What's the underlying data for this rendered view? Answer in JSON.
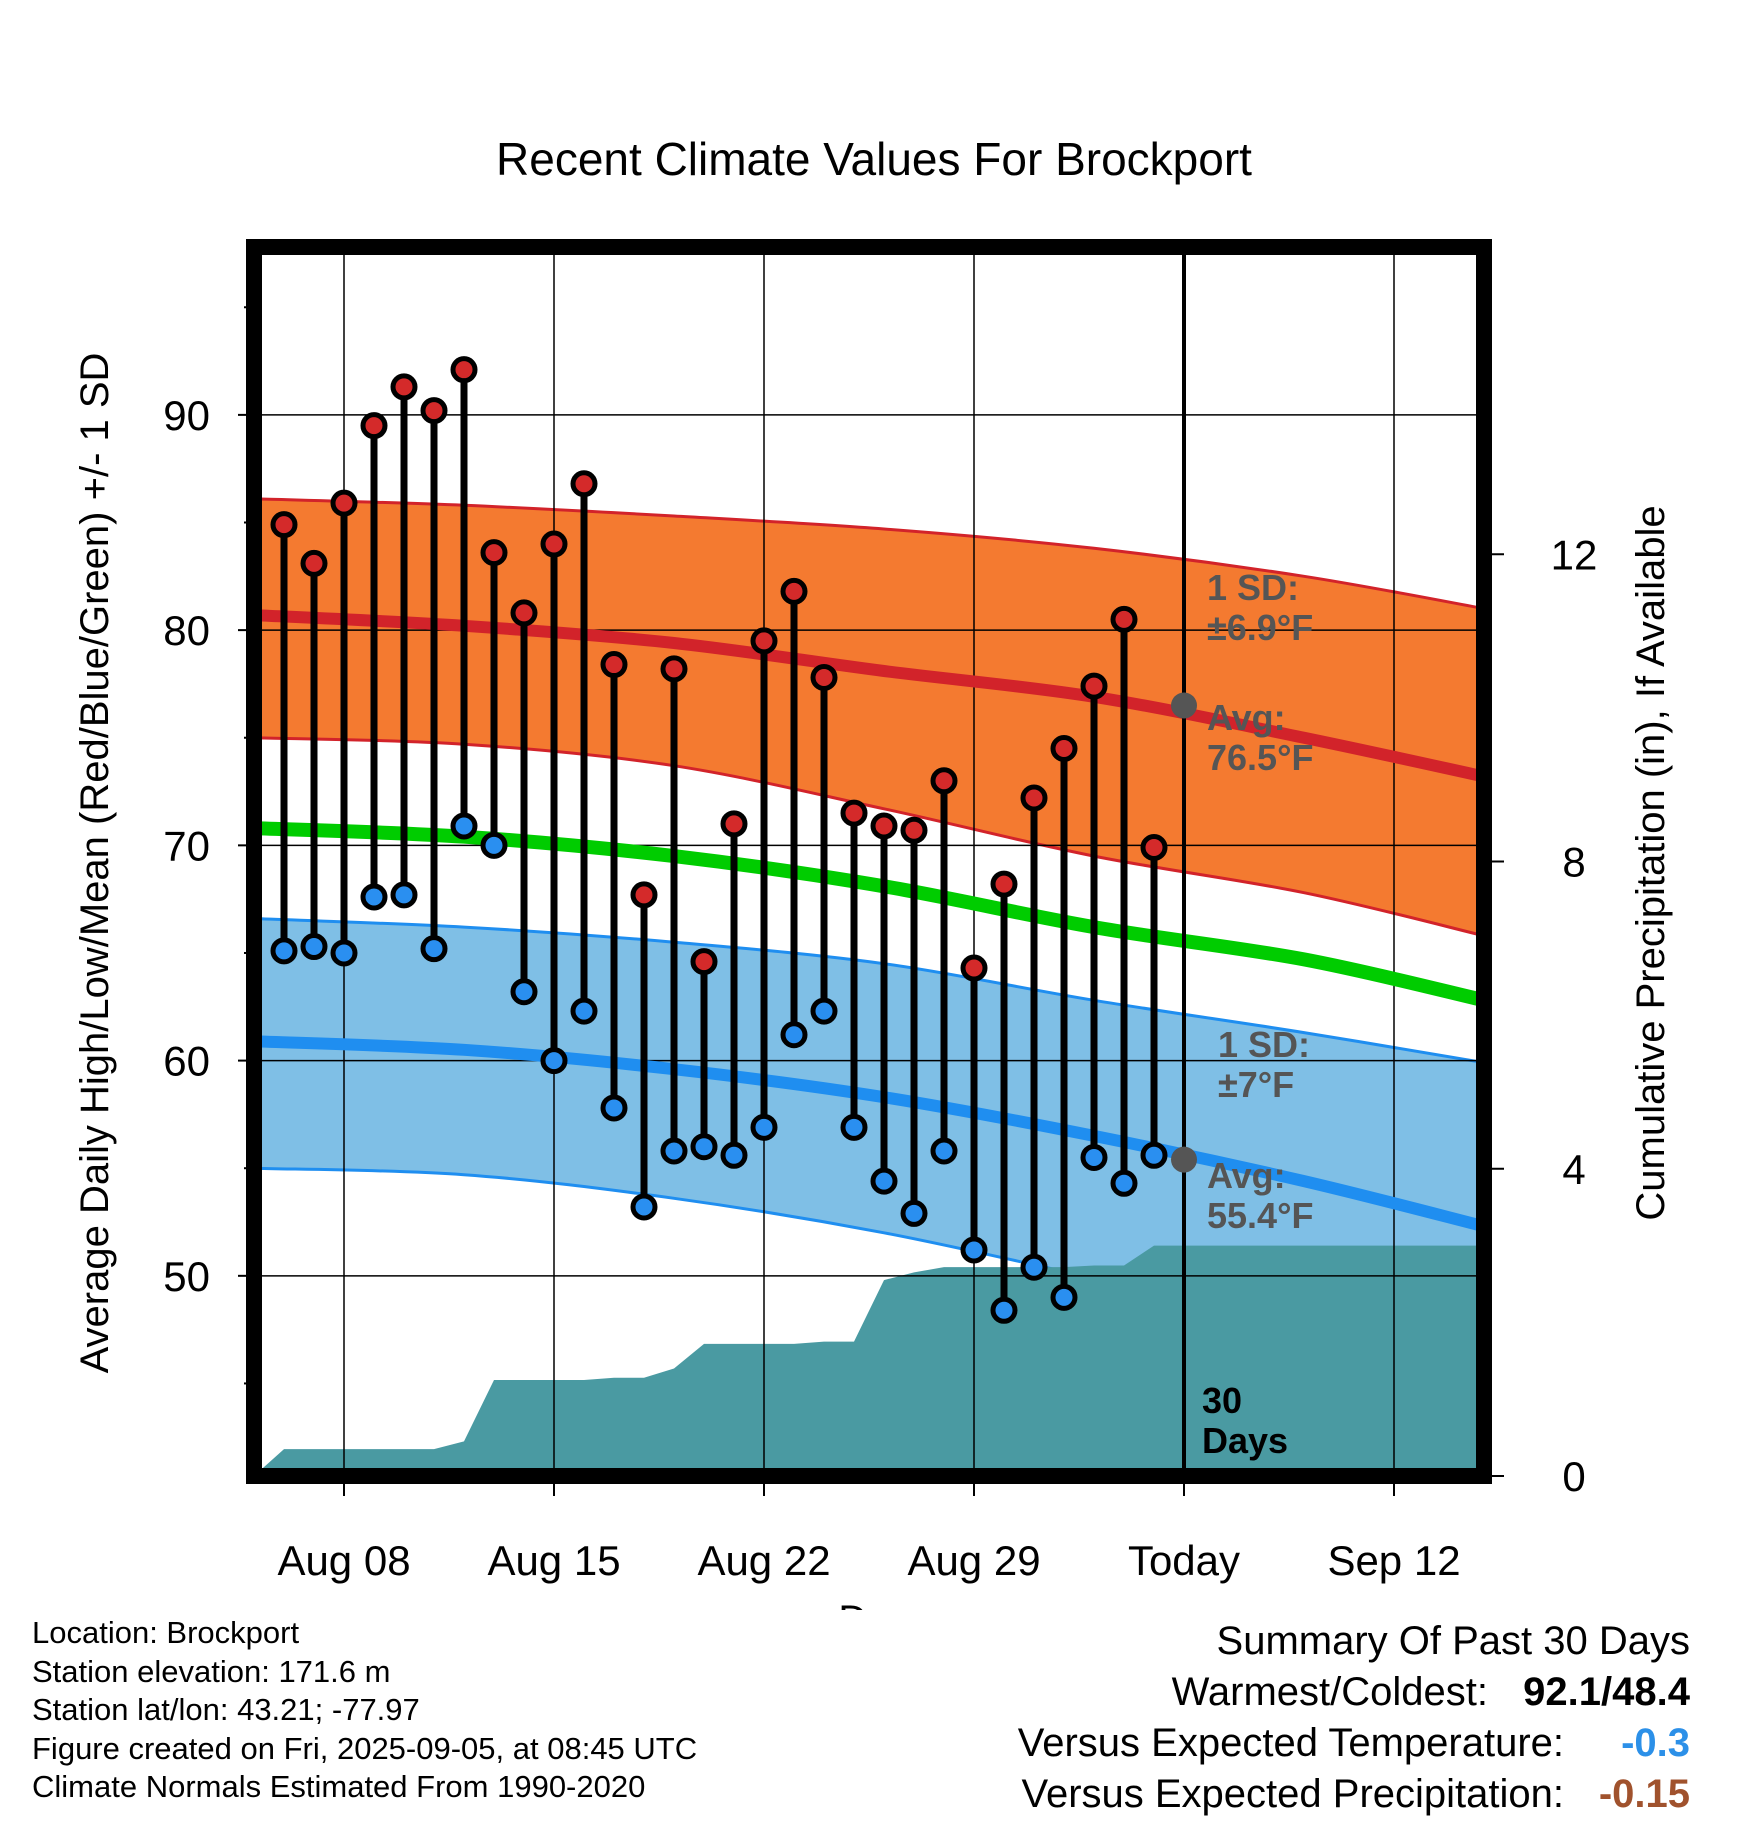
{
  "chart_data": {
    "type": "line",
    "title": "Recent Climate Values For Brockport",
    "xlabel": "Day",
    "ylabel": "Average Daily High/Low/Mean (Red/Blue/Green) +/- 1 SD",
    "ylabel_right": "Cumulative Precipitation (in), If Available",
    "x_axis": {
      "start_date": "2025-08-05",
      "end_date": "2025-09-15",
      "today_date": "2025-09-05"
    },
    "x_ticks": [
      {
        "date": "2025-08-08",
        "label": "Aug 08"
      },
      {
        "date": "2025-08-15",
        "label": "Aug 15"
      },
      {
        "date": "2025-08-22",
        "label": "Aug 22"
      },
      {
        "date": "2025-08-29",
        "label": "Aug 29"
      },
      {
        "date": "2025-09-05",
        "label": "Today"
      },
      {
        "date": "2025-09-12",
        "label": "Sep 12"
      }
    ],
    "ylim": [
      40.7,
      97.8
    ],
    "yticks": [
      50,
      60,
      70,
      80,
      90
    ],
    "y2lim": [
      0,
      16
    ],
    "y2ticks": [
      0,
      4,
      8,
      12
    ],
    "today_label": "30\nDays",
    "high_label": "1 SD:\n±6.9°F",
    "high_avg_label": "Avg:\n76.5°F",
    "low_label": "1 SD:\n±7°F",
    "low_avg_label": "Avg:\n55.4°F",
    "colors": {
      "high_band": "#f47a30",
      "high_line": "#d2232a",
      "low_band": "#7fbfe6",
      "low_line": "#1f8ef0",
      "mean_line": "#00cc00",
      "precip": "#4a9aa2",
      "high_dot": "#d42a2a",
      "low_dot": "#2a8ff0",
      "annotation": "#555555"
    },
    "normals": {
      "dates": [
        "2025-08-05",
        "2025-08-12",
        "2025-08-19",
        "2025-08-26",
        "2025-09-02",
        "2025-09-09",
        "2025-09-15"
      ],
      "high_avg": [
        80.7,
        80.2,
        79.4,
        78.1,
        76.9,
        75.0,
        73.2
      ],
      "high_upper": [
        86.1,
        85.8,
        85.3,
        84.7,
        83.8,
        82.5,
        81.0
      ],
      "high_lower": [
        75.0,
        74.7,
        73.7,
        71.7,
        69.5,
        67.8,
        65.8
      ],
      "mean_avg": [
        70.8,
        70.4,
        69.5,
        68.1,
        66.2,
        64.7,
        62.8
      ],
      "low_avg": [
        60.9,
        60.5,
        59.6,
        58.3,
        56.5,
        54.4,
        52.3
      ],
      "low_upper": [
        66.6,
        66.2,
        65.5,
        64.5,
        62.8,
        61.3,
        59.9
      ],
      "low_lower": [
        55.0,
        54.7,
        53.6,
        52.0,
        49.9,
        47.8,
        46.4
      ]
    },
    "series": [
      {
        "name": "High",
        "x": [
          "2025-08-06",
          "2025-08-07",
          "2025-08-08",
          "2025-08-09",
          "2025-08-10",
          "2025-08-11",
          "2025-08-12",
          "2025-08-13",
          "2025-08-14",
          "2025-08-15",
          "2025-08-16",
          "2025-08-17",
          "2025-08-18",
          "2025-08-19",
          "2025-08-20",
          "2025-08-21",
          "2025-08-22",
          "2025-08-23",
          "2025-08-24",
          "2025-08-25",
          "2025-08-26",
          "2025-08-27",
          "2025-08-28",
          "2025-08-29",
          "2025-08-30",
          "2025-08-31",
          "2025-09-01",
          "2025-09-02",
          "2025-09-03",
          "2025-09-04"
        ],
        "values": [
          84.9,
          83.1,
          85.9,
          89.5,
          91.3,
          90.2,
          92.1,
          83.6,
          80.8,
          84.0,
          86.8,
          78.4,
          67.7,
          78.2,
          64.6,
          71.0,
          79.5,
          81.8,
          77.8,
          71.5,
          70.9,
          70.7,
          73.0,
          64.3,
          68.2,
          72.2,
          74.5,
          77.4,
          80.5,
          69.9
        ]
      },
      {
        "name": "Low",
        "x": [
          "2025-08-06",
          "2025-08-07",
          "2025-08-08",
          "2025-08-09",
          "2025-08-10",
          "2025-08-11",
          "2025-08-12",
          "2025-08-13",
          "2025-08-14",
          "2025-08-15",
          "2025-08-16",
          "2025-08-17",
          "2025-08-18",
          "2025-08-19",
          "2025-08-20",
          "2025-08-21",
          "2025-08-22",
          "2025-08-23",
          "2025-08-24",
          "2025-08-25",
          "2025-08-26",
          "2025-08-27",
          "2025-08-28",
          "2025-08-29",
          "2025-08-30",
          "2025-08-31",
          "2025-09-01",
          "2025-09-02",
          "2025-09-03",
          "2025-09-04"
        ],
        "values": [
          65.1,
          65.3,
          65.0,
          67.6,
          67.7,
          65.2,
          70.9,
          70.0,
          63.2,
          60.0,
          62.3,
          57.8,
          53.2,
          55.8,
          56.0,
          55.6,
          56.9,
          61.2,
          62.3,
          56.9,
          54.4,
          52.9,
          55.8,
          51.2,
          48.4,
          50.4,
          49.0,
          55.5,
          54.3,
          55.6
        ]
      },
      {
        "name": "Cumulative Precipitation",
        "x": [
          "2025-08-05",
          "2025-08-06",
          "2025-08-07",
          "2025-08-08",
          "2025-08-09",
          "2025-08-10",
          "2025-08-11",
          "2025-08-12",
          "2025-08-13",
          "2025-08-14",
          "2025-08-15",
          "2025-08-16",
          "2025-08-17",
          "2025-08-18",
          "2025-08-19",
          "2025-08-20",
          "2025-08-21",
          "2025-08-22",
          "2025-08-23",
          "2025-08-24",
          "2025-08-25",
          "2025-08-26",
          "2025-08-27",
          "2025-08-28",
          "2025-08-29",
          "2025-08-30",
          "2025-08-31",
          "2025-09-01",
          "2025-09-02",
          "2025-09-03",
          "2025-09-04",
          "2025-09-05",
          "2025-09-15"
        ],
        "values": [
          0.0,
          0.35,
          0.35,
          0.35,
          0.35,
          0.35,
          0.35,
          0.45,
          1.25,
          1.25,
          1.25,
          1.25,
          1.28,
          1.28,
          1.4,
          1.72,
          1.72,
          1.72,
          1.72,
          1.75,
          1.75,
          2.55,
          2.65,
          2.72,
          2.72,
          2.72,
          2.72,
          2.72,
          2.74,
          2.74,
          3.0,
          3.0,
          3.0
        ]
      }
    ]
  },
  "info": {
    "location": "Location: Brockport",
    "elevation": "Station elevation: 171.6 m",
    "latlon": "Station lat/lon: 43.21; -77.97",
    "created": "Figure created on Fri, 2025-09-05, at 08:45 UTC",
    "normals": "Climate Normals Estimated From 1990-2020"
  },
  "summary": {
    "heading": "Summary Of Past 30 Days",
    "warmest_coldest_label": "Warmest/Coldest:",
    "warmest_coldest_value": "92.1/48.4",
    "temp_label": "Versus Expected Temperature:",
    "temp_value": "-0.3",
    "temp_color": "#2c90e8",
    "precip_label": "Versus Expected Precipitation:",
    "precip_value": "-0.15",
    "precip_color": "#a0522d"
  }
}
